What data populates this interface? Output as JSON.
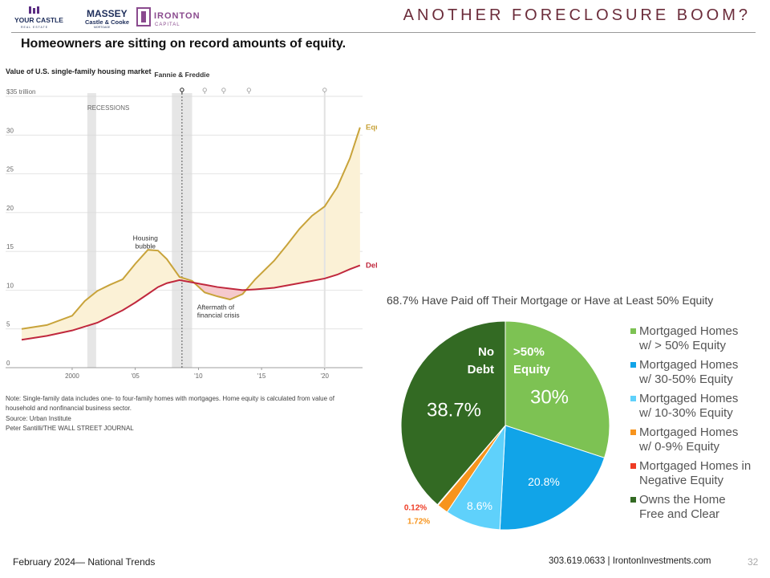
{
  "header": {
    "logos": [
      {
        "name": "YOUR CASTLE",
        "sub": "REAL ESTATE"
      },
      {
        "name": "MASSEY",
        "sub": "Castle & Cooke",
        "sub2": "MORTGAGE"
      },
      {
        "name": "IRONTON",
        "sub": "CAPITAL"
      }
    ],
    "title": "ANOTHER FORECLOSURE BOOM?",
    "subtitle": "Homeowners are sitting on record amounts of equity."
  },
  "colors": {
    "equity": "#c8a33a",
    "debt": "#c0283d",
    "equity_fill": "#fbf1d6",
    "debt_fill": "#f5c9cc",
    "title": "#6b2c3a"
  },
  "chart_data": [
    {
      "type": "area",
      "title": "Value of U.S. single-family housing market",
      "y_unit_label": "$35 trillion",
      "xlim": [
        1996,
        2023
      ],
      "ylim": [
        0,
        35
      ],
      "yticks": [
        {
          "value": 0,
          "label": "0"
        },
        {
          "value": 5,
          "label": "5"
        },
        {
          "value": 10,
          "label": "10"
        },
        {
          "value": 15,
          "label": "15"
        },
        {
          "value": 20,
          "label": "20"
        },
        {
          "value": 25,
          "label": "25"
        },
        {
          "value": 30,
          "label": "30"
        },
        {
          "value": 35,
          "label": "$35 trillion"
        }
      ],
      "xticks": [
        {
          "value": 2000,
          "label": "2000"
        },
        {
          "value": 2005,
          "label": "'05"
        },
        {
          "value": 2010,
          "label": "'10"
        },
        {
          "value": 2015,
          "label": "'15"
        },
        {
          "value": 2020,
          "label": "'20"
        }
      ],
      "recessions": [
        [
          2001.2,
          2001.9
        ],
        [
          2007.9,
          2009.5
        ]
      ],
      "recession_label": "RECESSIONS",
      "event_line": {
        "x": 2008.7,
        "label": "Fannie & Freddie"
      },
      "event_markers": [
        2008.7,
        2010.5,
        2012.0,
        2014.0,
        2020.0
      ],
      "grid": true,
      "series": [
        {
          "name": "Equity",
          "x": [
            1996,
            1998,
            2000,
            2001,
            2002,
            2003,
            2004,
            2005,
            2006,
            2006.8,
            2007.5,
            2008.5,
            2009.5,
            2010.5,
            2011.5,
            2012.5,
            2013.5,
            2014.5,
            2016,
            2017,
            2018,
            2019,
            2020,
            2021,
            2022,
            2022.8
          ],
          "y": [
            5.0,
            5.5,
            6.7,
            8.6,
            9.9,
            10.7,
            11.4,
            13.4,
            15.2,
            15.1,
            14.0,
            11.7,
            11.2,
            9.7,
            9.2,
            8.8,
            9.5,
            11.4,
            13.8,
            15.8,
            17.9,
            19.6,
            20.8,
            23.3,
            27.0,
            31.0
          ]
        },
        {
          "name": "Debt",
          "x": [
            1996,
            1998,
            2000,
            2001,
            2002,
            2003,
            2004,
            2005,
            2006,
            2006.8,
            2007.5,
            2008.5,
            2009.5,
            2010.5,
            2011.5,
            2012.5,
            2013.5,
            2014.5,
            2016,
            2017,
            2018,
            2019,
            2020,
            2021,
            2022,
            2022.8
          ],
          "y": [
            3.6,
            4.1,
            4.8,
            5.3,
            5.8,
            6.6,
            7.4,
            8.4,
            9.5,
            10.4,
            10.9,
            11.3,
            11.0,
            10.7,
            10.4,
            10.2,
            10.0,
            10.1,
            10.3,
            10.6,
            10.9,
            11.2,
            11.5,
            12.0,
            12.7,
            13.2
          ]
        }
      ],
      "annotations": [
        {
          "text": [
            "Housing",
            "bubble"
          ],
          "x": 2005.8,
          "y": 16.4
        },
        {
          "text": [
            "Aftermath of",
            "financial crisis"
          ],
          "x": 2009.9,
          "y": 7.5
        }
      ],
      "notes": [
        "Note: Single-family data includes one- to four-family homes with mortgages. Home equity is calculated from value of",
        "household and nonfinancial business sector.",
        "Source: Urban Institute",
        "Peter Santilli/THE WALL STREET JOURNAL"
      ]
    },
    {
      "type": "pie",
      "title": "68.7% Have Paid off Their Mortgage or Have at Least 50% Equity",
      "slices": [
        {
          "legend": [
            "Mortgaged Homes",
            "w/ > 50% Equity"
          ],
          "value": 30.0,
          "label": "30%",
          "color": "#7dc253"
        },
        {
          "legend": [
            "Mortgaged Homes",
            "w/ 30-50% Equity"
          ],
          "value": 20.8,
          "label": "20.8%",
          "color": "#11a4e8"
        },
        {
          "legend": [
            "Mortgaged Homes",
            "w/ 10-30% Equity"
          ],
          "value": 8.6,
          "label": "8.6%",
          "color": "#5fd1fb"
        },
        {
          "legend": [
            "Mortgaged Homes",
            "w/ 0-9% Equity"
          ],
          "value": 1.72,
          "label": "1.72%",
          "color": "#f7941d"
        },
        {
          "legend": [
            "Mortgaged Homes in",
            "Negative Equity"
          ],
          "value": 0.12,
          "label": "0.12%",
          "color": "#ee3b24"
        },
        {
          "legend": [
            "Owns the Home",
            "Free and Clear"
          ],
          "value": 38.7,
          "label": "38.7%",
          "color": "#336a23"
        }
      ],
      "overlay_labels": [
        {
          "lines": [
            "No",
            "Debt"
          ]
        },
        {
          "lines": [
            ">50%",
            "Equity"
          ]
        }
      ]
    }
  ],
  "footer": {
    "left": "February 2024— National Trends",
    "right": "303.619.0633 | IrontonInvestments.com",
    "page": "32"
  }
}
